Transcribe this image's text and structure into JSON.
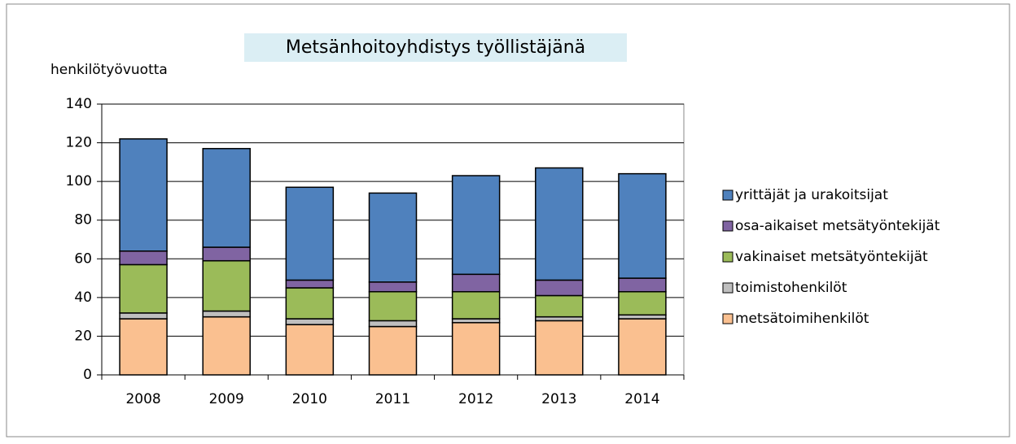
{
  "chart_data": {
    "type": "stacked_bar",
    "title": "Metsänhoitoyhdistys työllistäjänä",
    "y_label": "henkilötyövuotta",
    "categories": [
      "2008",
      "2009",
      "2010",
      "2011",
      "2012",
      "2013",
      "2014"
    ],
    "series": [
      {
        "name": "metsätoimihenkilöt",
        "color": "#fac090",
        "values": [
          29,
          30,
          26,
          25,
          27,
          28,
          29
        ]
      },
      {
        "name": "toimistohenkilöt",
        "color": "#bfbfbf",
        "values": [
          3,
          3,
          3,
          3,
          2,
          2,
          2
        ]
      },
      {
        "name": "vakinaiset metsätyöntekijät",
        "color": "#9bbb59",
        "values": [
          25,
          26,
          16,
          15,
          14,
          11,
          12
        ]
      },
      {
        "name": "osa-aikaiset metsätyöntekijät",
        "color": "#8064a2",
        "values": [
          7,
          7,
          4,
          5,
          9,
          8,
          7
        ]
      },
      {
        "name": "yrittäjät ja urakoitsijat",
        "color": "#4f81bd",
        "values": [
          58,
          51,
          48,
          46,
          51,
          58,
          54
        ]
      }
    ],
    "ylim": [
      0,
      140
    ],
    "yticks": [
      0,
      20,
      40,
      60,
      80,
      100,
      120,
      140
    ],
    "grid": true,
    "legend": "right"
  }
}
